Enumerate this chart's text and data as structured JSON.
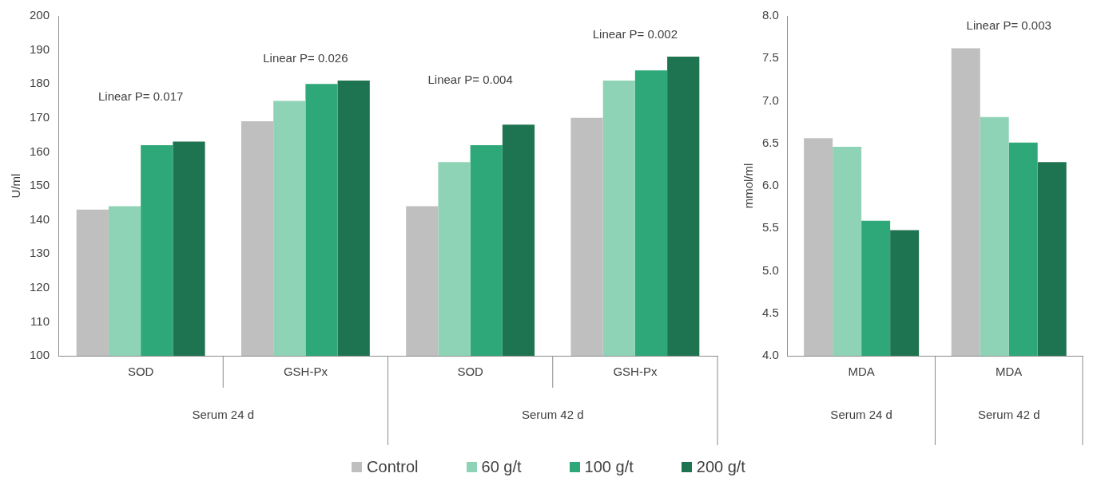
{
  "chart_data": [
    {
      "type": "bar",
      "ylabel": "U/ml",
      "categories": [
        "SOD",
        "GSH-Px",
        "SOD",
        "GSH-Px"
      ],
      "ylim": [
        100,
        200
      ],
      "yticks": [
        100,
        110,
        120,
        130,
        140,
        150,
        160,
        170,
        180,
        190,
        200
      ],
      "grid": false,
      "legend": "bottom",
      "series": [
        {
          "name": "Control",
          "color": "#bfbfbf",
          "values": [
            143,
            169,
            144,
            170
          ]
        },
        {
          "name": "60 g/t",
          "color": "#8fd3b6",
          "values": [
            144,
            175,
            157,
            181
          ]
        },
        {
          "name": "100 g/t",
          "color": "#2ea878",
          "values": [
            162,
            180,
            162,
            184
          ]
        },
        {
          "name": "200 g/t",
          "color": "#1e7350",
          "values": [
            163,
            181,
            168,
            188
          ]
        }
      ],
      "annotations": [
        "Linear P= 0.017",
        "Linear P= 0.026",
        "Linear P= 0.004",
        "Linear P= 0.002",
        "Serum 24 d",
        "Serum 42 d"
      ]
    },
    {
      "type": "bar",
      "ylabel": "mmol/ml",
      "categories": [
        "MDA",
        "MDA"
      ],
      "ylim": [
        4.0,
        8.0
      ],
      "yticks": [
        {
          "value": 4,
          "label": "4.0"
        },
        {
          "value": 4.5,
          "label": "4.5"
        },
        {
          "value": 5,
          "label": "5.0"
        },
        {
          "value": 5.5,
          "label": "5.5"
        },
        {
          "value": 6,
          "label": "6.0"
        },
        {
          "value": 6.5,
          "label": "6.5"
        },
        {
          "value": 7,
          "label": "7.0"
        },
        {
          "value": 7.5,
          "label": "7.5"
        },
        {
          "value": 8,
          "label": "8.0"
        }
      ],
      "grid": false,
      "series": [
        {
          "color": "#bfbfbf",
          "values": [
            6.56,
            7.62
          ]
        },
        {
          "color": "#8fd3b6",
          "values": [
            6.46,
            6.81
          ]
        },
        {
          "color": "#2ea878",
          "values": [
            5.59,
            6.51
          ]
        },
        {
          "color": "#1e7350",
          "values": [
            5.48,
            6.28
          ]
        }
      ],
      "annotations": [
        "Linear P= 0.003",
        "Serum 24 d",
        "Serum 42 d"
      ]
    }
  ]
}
